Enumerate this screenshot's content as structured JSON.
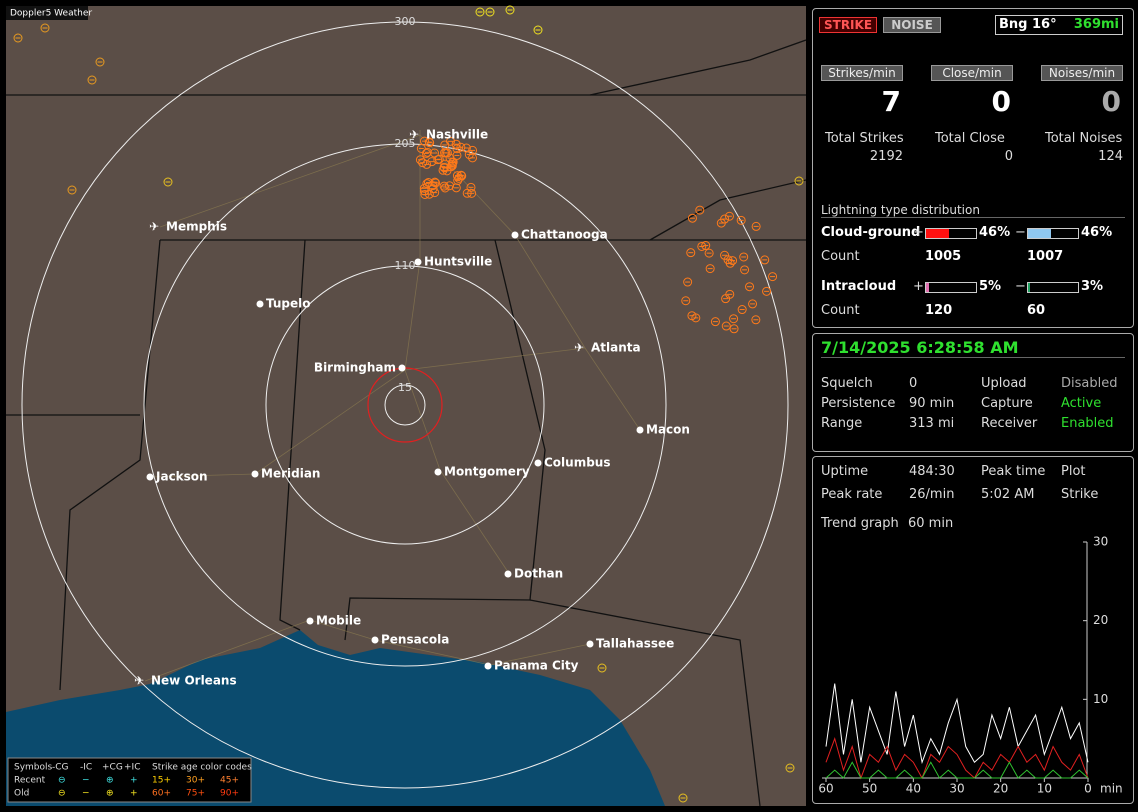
{
  "map": {
    "title": "Doppler5 Weather",
    "range_labels": [
      "300",
      "205",
      "110",
      "15"
    ],
    "cities": [
      "Nashville",
      "Memphis",
      "Chattanooga",
      "Huntsville",
      "Tupelo",
      "Atlanta",
      "Birmingham",
      "Macon",
      "Jackson",
      "Meridian",
      "Montgomery",
      "Columbus",
      "Dothan",
      "Mobile",
      "Pensacola",
      "Tallahassee",
      "Panama City",
      "New Orleans"
    ],
    "legend": {
      "header": [
        "Symbols",
        "-CG",
        "-IC",
        "+CG",
        "+IC",
        "Strike age color codes"
      ],
      "rows": [
        {
          "label": "Recent",
          "ages": [
            "15+",
            "30+",
            "45+"
          ]
        },
        {
          "label": "Old",
          "ages": [
            "60+",
            "75+",
            "90+"
          ]
        }
      ]
    }
  },
  "strike_panel": {
    "buttons": [
      "STRIKE",
      "NOISE"
    ],
    "bearing": "Bng 16°",
    "distance": "369mi",
    "rates": [
      {
        "label": "Strikes/min",
        "value": 7,
        "total_label": "Total Strikes",
        "total": 2192
      },
      {
        "label": "Close/min",
        "value": 0,
        "total_label": "Total Close",
        "total": 0
      },
      {
        "label": "Noises/min",
        "value": 0,
        "total_label": "Total Noises",
        "total": 124
      }
    ],
    "distribution": {
      "title": "Lightning type distribution",
      "plus_sign": "+",
      "minus_sign": "−",
      "rows": [
        {
          "label": "Cloud-ground",
          "plus": 46,
          "plus_label": "46%",
          "minus": 46,
          "minus_label": "46%",
          "count_label": "Count",
          "plus_count": 1005,
          "minus_count": 1007
        },
        {
          "label": "Intracloud",
          "plus": 5,
          "plus_label": "5%",
          "minus": 3,
          "minus_label": "3%",
          "count_label": "Count",
          "plus_count": 120,
          "minus_count": 60
        }
      ]
    }
  },
  "status_panel": {
    "datetime": "7/14/2025 6:28:58 AM",
    "rows": [
      [
        "Squelch",
        "0",
        "Upload",
        "Disabled"
      ],
      [
        "Persistence",
        "90 min",
        "Capture",
        "Active"
      ],
      [
        "Range",
        "313 mi",
        "Receiver",
        "Enabled"
      ]
    ]
  },
  "trend_panel": {
    "rows": [
      [
        "Uptime",
        "484:30",
        "Peak time",
        "Plot"
      ],
      [
        "Peak rate",
        "26/min",
        "5:02 AM",
        "Strike"
      ]
    ],
    "trend_label": "Trend graph",
    "trend_value": "60 min",
    "graph": {
      "xlim": [
        60,
        0
      ],
      "ylim": [
        0,
        30
      ],
      "yticks": [
        30,
        20,
        10
      ],
      "xticks": [
        60,
        50,
        40,
        30,
        20,
        10,
        0
      ],
      "x_label": "min",
      "x": [
        60,
        58,
        56,
        54,
        52,
        50,
        48,
        46,
        44,
        42,
        40,
        38,
        36,
        34,
        32,
        30,
        28,
        26,
        24,
        22,
        20,
        18,
        16,
        14,
        12,
        10,
        8,
        6,
        4,
        2,
        0
      ],
      "series": [
        {
          "color": "#ffffff",
          "values": [
            4,
            12,
            3,
            10,
            2,
            9,
            6,
            3,
            11,
            4,
            8,
            2,
            5,
            3,
            7,
            10,
            4,
            2,
            3,
            8,
            5,
            9,
            4,
            6,
            8,
            3,
            6,
            9,
            5,
            7,
            2
          ]
        },
        {
          "color": "#e02020",
          "values": [
            2,
            5,
            1,
            4,
            0,
            3,
            2,
            4,
            1,
            3,
            2,
            0,
            3,
            2,
            4,
            3,
            1,
            0,
            2,
            1,
            3,
            2,
            4,
            2,
            3,
            1,
            4,
            2,
            1,
            3,
            0
          ]
        },
        {
          "color": "#30c030",
          "values": [
            0,
            1,
            0,
            2,
            0,
            0,
            1,
            0,
            0,
            1,
            0,
            0,
            2,
            0,
            1,
            0,
            0,
            0,
            1,
            0,
            0,
            2,
            0,
            1,
            0,
            0,
            1,
            0,
            0,
            1,
            0
          ]
        }
      ]
    }
  }
}
